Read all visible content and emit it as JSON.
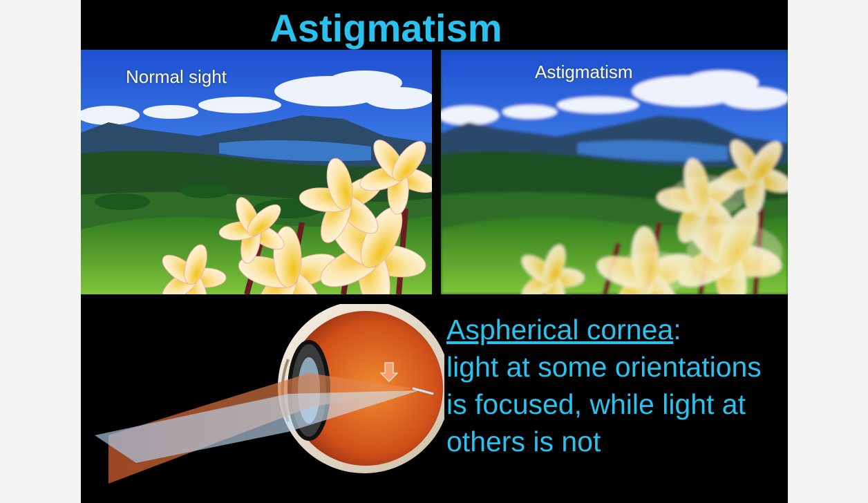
{
  "slide": {
    "title": "Astigmatism",
    "photos": [
      {
        "label": "Normal sight",
        "condition": "sharp"
      },
      {
        "label": "Astigmatism",
        "condition": "blurred"
      }
    ],
    "caption": {
      "term": "Aspherical cornea",
      "colon": ":",
      "body": "light at some orientations is focused, while light at others is not"
    },
    "diagram": {
      "icon": "eye-cross-section-icon"
    }
  },
  "colors": {
    "title": "#29c2ef",
    "background": "#000000",
    "label": "#fffbd0"
  }
}
